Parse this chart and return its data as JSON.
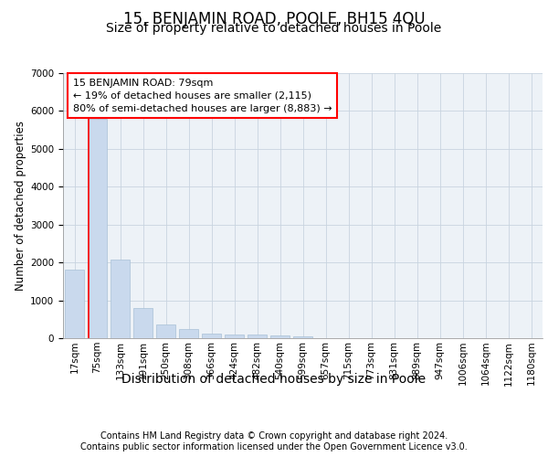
{
  "title": "15, BENJAMIN ROAD, POOLE, BH15 4QU",
  "subtitle": "Size of property relative to detached houses in Poole",
  "xlabel": "Distribution of detached houses by size in Poole",
  "ylabel": "Number of detached properties",
  "footer_line1": "Contains HM Land Registry data © Crown copyright and database right 2024.",
  "footer_line2": "Contains public sector information licensed under the Open Government Licence v3.0.",
  "x_labels": [
    "17sqm",
    "75sqm",
    "133sqm",
    "191sqm",
    "250sqm",
    "308sqm",
    "366sqm",
    "424sqm",
    "482sqm",
    "540sqm",
    "599sqm",
    "657sqm",
    "715sqm",
    "773sqm",
    "831sqm",
    "889sqm",
    "947sqm",
    "1006sqm",
    "1064sqm",
    "1122sqm",
    "1180sqm"
  ],
  "bar_values": [
    1800,
    5800,
    2080,
    800,
    370,
    230,
    130,
    100,
    100,
    70,
    60,
    0,
    0,
    0,
    0,
    0,
    0,
    0,
    0,
    0,
    0
  ],
  "bar_color": "#c9d9ed",
  "bar_edge_color": "#a8c0d6",
  "ylim": [
    0,
    7000
  ],
  "yticks": [
    0,
    1000,
    2000,
    3000,
    4000,
    5000,
    6000,
    7000
  ],
  "red_line_x": 0.62,
  "annotation_text": "15 BENJAMIN ROAD: 79sqm\n← 19% of detached houses are smaller (2,115)\n80% of semi-detached houses are larger (8,883) →",
  "grid_color": "#c8d4e0",
  "bg_color": "#edf2f7",
  "title_fontsize": 12,
  "subtitle_fontsize": 10,
  "xlabel_fontsize": 10,
  "ylabel_fontsize": 8.5,
  "tick_fontsize": 7.5,
  "footer_fontsize": 7,
  "annot_fontsize": 8
}
